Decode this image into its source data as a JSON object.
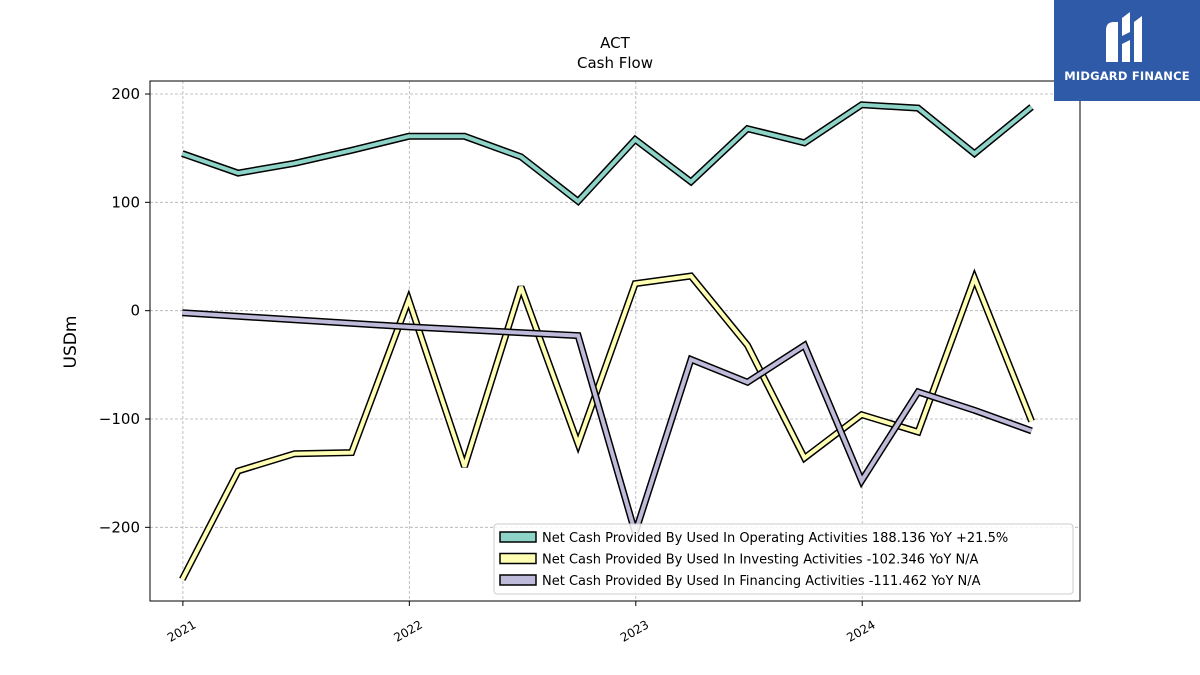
{
  "chart_data": {
    "type": "line",
    "title": "ACT",
    "subtitle": "Cash Flow",
    "xlabel": "",
    "ylabel": "USDm",
    "x_tick_labels": [
      "2021",
      "2022",
      "2023",
      "2024"
    ],
    "y_ticks": [
      -200,
      -100,
      0,
      100,
      200
    ],
    "y_tick_labels": [
      "−200",
      "−100",
      "0",
      "100",
      "200"
    ],
    "ylim": [
      -268,
      212
    ],
    "xlim": [
      "2020-11-09",
      "2024-12-17"
    ],
    "grid": true,
    "legend_position": "lower-right",
    "x": [
      "2020-12-31",
      "2021-03-31",
      "2021-06-30",
      "2021-09-30",
      "2021-12-31",
      "2022-03-31",
      "2022-06-30",
      "2022-09-30",
      "2022-12-31",
      "2023-03-31",
      "2023-06-30",
      "2023-09-30",
      "2023-12-31",
      "2024-03-31",
      "2024-06-30",
      "2024-09-30"
    ],
    "series": [
      {
        "name": "Net Cash Provided By Used In Operating Activities",
        "legend": "Net Cash Provided By Used In Operating Activities  188.136 YoY +21.5%",
        "color": "#8dd3c7",
        "values": [
          145,
          127,
          136,
          148,
          161,
          161,
          142,
          101,
          158,
          119,
          168,
          155,
          190,
          187,
          145,
          188
        ]
      },
      {
        "name": "Net Cash Provided By Used In Investing Activities",
        "legend": "Net Cash Provided By Used In Investing Activities  -102.346 YoY N/A",
        "color": "#ffffb3",
        "values": [
          -248,
          -148,
          -132,
          -131,
          10,
          -144,
          22,
          -123,
          25,
          32,
          -32,
          -136,
          -96,
          -112,
          30,
          -102
        ]
      },
      {
        "name": "Net Cash Provided By Used In Financing Activities",
        "legend": "Net Cash Provided By Used In Financing Activities  -111.462 YoY N/A",
        "color": "#bebada",
        "values": [
          -2,
          null,
          null,
          null,
          -15,
          null,
          null,
          -23,
          -205,
          -45,
          -66,
          -32,
          -157,
          -75,
          -92,
          -111
        ]
      }
    ]
  },
  "logo": {
    "text": "MIDGARD FINANCE",
    "bg": "#2f5aa8"
  }
}
